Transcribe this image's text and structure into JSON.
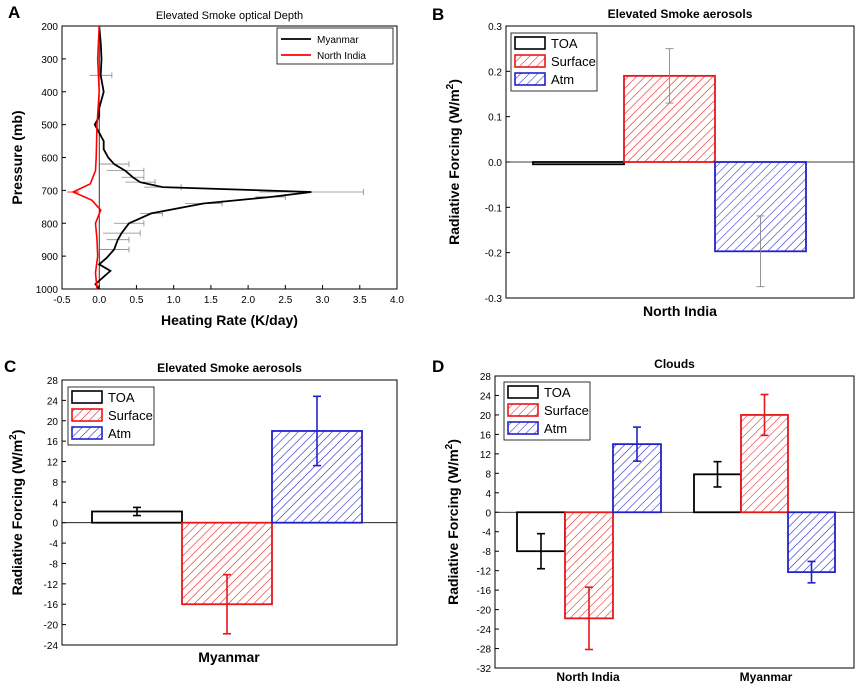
{
  "colors": {
    "myanmar": "#000000",
    "north_india": "#ff0000",
    "toa": "#000000",
    "surface": "#e8171a",
    "atm": "#2222cc",
    "error_grey": "#888888"
  },
  "chart_data": [
    {
      "panel": "A",
      "type": "line",
      "title": "Elevated Smoke optical Depth",
      "xlabel": "Heating Rate (K/day)",
      "ylabel": "Pressure (mb)",
      "xlim": [
        -0.5,
        4.0
      ],
      "ylim": [
        200,
        1000
      ],
      "y_inverted": true,
      "xticks": [
        "-0.5",
        "0.0",
        "0.5",
        "1.0",
        "1.5",
        "2.0",
        "2.5",
        "3.0",
        "3.5",
        "4.0"
      ],
      "yticks": [
        "200",
        "300",
        "400",
        "500",
        "600",
        "700",
        "800",
        "900",
        "1000"
      ],
      "legend": [
        "Myanmar",
        "North India"
      ],
      "series": [
        {
          "name": "Myanmar",
          "points": [
            [
              0.0,
              200
            ],
            [
              0.02,
              250
            ],
            [
              0.03,
              300
            ],
            [
              0.02,
              350
            ],
            [
              0.06,
              400
            ],
            [
              0.0,
              450
            ],
            [
              0.0,
              475
            ],
            [
              -0.06,
              500
            ],
            [
              0.0,
              525
            ],
            [
              0.06,
              550
            ],
            [
              0.06,
              575
            ],
            [
              0.12,
              600
            ],
            [
              0.2,
              620
            ],
            [
              0.35,
              640
            ],
            [
              0.45,
              660
            ],
            [
              0.55,
              675
            ],
            [
              0.85,
              690
            ],
            [
              2.85,
              705
            ],
            [
              2.3,
              720
            ],
            [
              1.4,
              740
            ],
            [
              0.7,
              770
            ],
            [
              0.4,
              800
            ],
            [
              0.3,
              830
            ],
            [
              0.25,
              850
            ],
            [
              0.2,
              880
            ],
            [
              0.1,
              905
            ],
            [
              0.0,
              925
            ],
            [
              0.15,
              945
            ],
            [
              0.05,
              965
            ],
            [
              -0.05,
              985
            ],
            [
              0.0,
              1000
            ]
          ]
        },
        {
          "name": "North India",
          "points": [
            [
              0.0,
              200
            ],
            [
              -0.02,
              300
            ],
            [
              0.0,
              400
            ],
            [
              -0.03,
              500
            ],
            [
              -0.04,
              600
            ],
            [
              -0.05,
              640
            ],
            [
              -0.12,
              680
            ],
            [
              -0.35,
              705
            ],
            [
              -0.1,
              730
            ],
            [
              0.02,
              760
            ],
            [
              -0.05,
              800
            ],
            [
              -0.03,
              850
            ],
            [
              -0.02,
              900
            ],
            [
              -0.05,
              950
            ],
            [
              -0.03,
              1000
            ]
          ]
        }
      ]
    },
    {
      "panel": "B",
      "type": "bar",
      "title": "Elevated Smoke aerosols",
      "xlabel": "North India",
      "ylabel": "Radiative Forcing (W/m2)",
      "ylim": [
        -0.3,
        0.3
      ],
      "yticks": [
        "-0.3",
        "-0.2",
        "-0.1",
        "0.0",
        "0.1",
        "0.2",
        "0.3"
      ],
      "legend": [
        "TOA",
        "Surface",
        "Atm"
      ],
      "series": [
        {
          "name": "TOA",
          "values": [
            -0.005
          ],
          "error": [
            null
          ]
        },
        {
          "name": "Surface",
          "values": [
            0.19
          ],
          "error": [
            0.06
          ]
        },
        {
          "name": "Atm",
          "values": [
            -0.197
          ],
          "error": [
            0.078
          ]
        }
      ]
    },
    {
      "panel": "C",
      "type": "bar",
      "title": "Elevated Smoke aerosols",
      "xlabel": "Myanmar",
      "ylabel": "Radiative Forcing (W/m2)",
      "ylim": [
        -24,
        28
      ],
      "yticks": [
        "-24",
        "-20",
        "-16",
        "-12",
        "-8",
        "-4",
        "0",
        "4",
        "8",
        "12",
        "16",
        "20",
        "24",
        "28"
      ],
      "legend": [
        "TOA",
        "Surface",
        "Atm"
      ],
      "series": [
        {
          "name": "TOA",
          "values": [
            2.2
          ],
          "error": [
            0.8
          ]
        },
        {
          "name": "Surface",
          "values": [
            -16.0
          ],
          "error": [
            5.8
          ]
        },
        {
          "name": "Atm",
          "values": [
            18.0
          ],
          "error": [
            6.8
          ]
        }
      ]
    },
    {
      "panel": "D",
      "type": "bar",
      "title": "Clouds",
      "categories": [
        "North India",
        "Myanmar"
      ],
      "ylabel": "Radiative Forcing (W/m2)",
      "ylim": [
        -32,
        28
      ],
      "yticks": [
        "-32",
        "-28",
        "-24",
        "-20",
        "-16",
        "-12",
        "-8",
        "-4",
        "0",
        "4",
        "8",
        "12",
        "16",
        "20",
        "24",
        "28"
      ],
      "legend": [
        "TOA",
        "Surface",
        "Atm"
      ],
      "series": [
        {
          "name": "TOA",
          "values": [
            -8.0,
            7.8
          ],
          "error": [
            3.6,
            2.6
          ]
        },
        {
          "name": "Surface",
          "values": [
            -21.8,
            20.0
          ],
          "error": [
            6.4,
            4.2
          ]
        },
        {
          "name": "Atm",
          "values": [
            14.0,
            -12.3
          ],
          "error": [
            3.5,
            2.2
          ]
        }
      ]
    }
  ]
}
